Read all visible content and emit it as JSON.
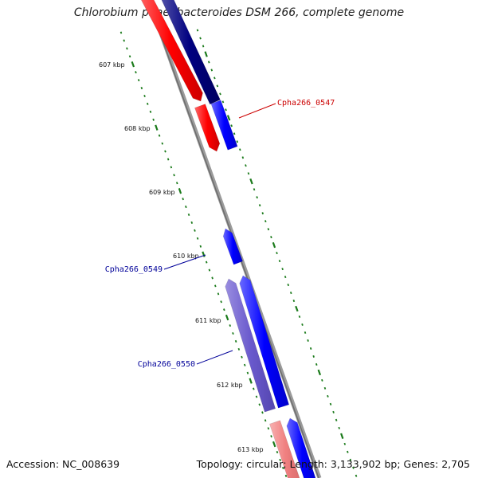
{
  "title": "Chlorobium phaeobacteroides DSM 266, complete genome",
  "footer": {
    "accession": "Accession: NC_008639",
    "summary": "Topology: circular; Length: 3,133,902 bp; Genes: 2,705"
  },
  "ticks": [
    "607 kbp",
    "608 kbp",
    "609 kbp",
    "610 kbp",
    "611 kbp",
    "612 kbp",
    "613 kbp"
  ],
  "gene_labels": {
    "g0547": "Cpha266_0547",
    "g0549": "Cpha266_0549",
    "g0550": "Cpha266_0550"
  },
  "colors": {
    "backbone": "#8a8a8a",
    "tick_green": "#1a7a1a",
    "forward_red": "#ff0000",
    "forward_pink": "#f08080",
    "reverse_navy": "#000080",
    "reverse_blue": "#0000ff",
    "slate": "#6a5acd",
    "label_red": "#cc0000",
    "label_blue": "#000099"
  }
}
